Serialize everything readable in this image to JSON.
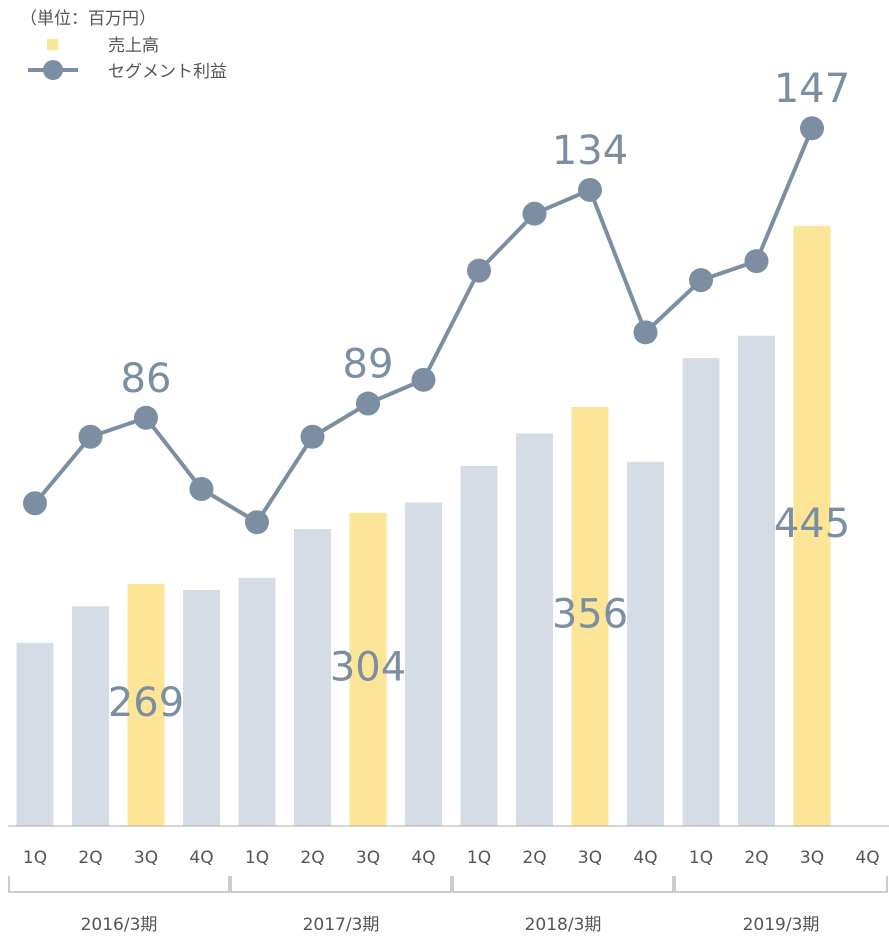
{
  "chart_data": {
    "type": "bar_line",
    "unit_note": "（単位：百万円）",
    "categories": [
      "1Q",
      "2Q",
      "3Q",
      "4Q",
      "1Q",
      "2Q",
      "3Q",
      "4Q",
      "1Q",
      "2Q",
      "3Q",
      "4Q",
      "1Q",
      "2Q",
      "3Q",
      "4Q"
    ],
    "groups": [
      "2016/3期",
      "2017/3期",
      "2018/3期",
      "2019/3期"
    ],
    "ylim": [
      150,
      500
    ],
    "y2lim": [
      0,
      150
    ],
    "series": [
      {
        "name": "売上高",
        "type": "bar",
        "color": "#fde597",
        "colors": [
          "#d6dce6",
          "#d6dce6",
          "#fde597",
          "#d6dce6",
          "#d6dce6",
          "#d6dce6",
          "#fde597",
          "#d6dce6",
          "#d6dce6",
          "#d6dce6",
          "#fde597",
          "#d6dce6",
          "#d6dce6",
          "#d6dce6",
          "#fde597",
          "#d6dce6"
        ],
        "values": [
          240,
          258,
          269,
          266,
          272,
          296,
          304,
          309,
          327,
          343,
          356,
          329,
          380,
          391,
          445,
          null
        ],
        "value_labels": [
          null,
          null,
          "269",
          null,
          null,
          null,
          "304",
          null,
          null,
          null,
          "356",
          null,
          null,
          null,
          "445",
          null
        ]
      },
      {
        "name": "セグメント利益",
        "type": "line",
        "axis": "y2",
        "color": "#7b8ea2",
        "values": [
          68,
          82,
          86,
          71,
          64,
          82,
          89,
          94,
          117,
          129,
          134,
          104,
          115,
          119,
          147,
          null
        ],
        "value_labels": [
          null,
          null,
          "86",
          null,
          null,
          null,
          "89",
          null,
          null,
          null,
          "134",
          null,
          null,
          null,
          "147",
          null
        ]
      }
    ]
  }
}
